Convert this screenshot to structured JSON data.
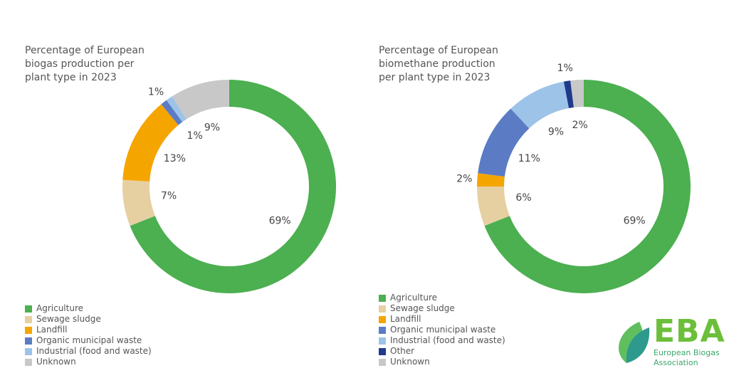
{
  "chart_data": [
    {
      "type": "pie",
      "title": "Percentage of European biogas production per plant type in 2023",
      "categories": [
        "Agriculture",
        "Sewage sludge",
        "Landfill",
        "Organic municipal waste",
        "Industrial (food and waste)",
        "Unknown"
      ],
      "values": [
        69,
        7,
        13,
        1,
        1,
        9
      ],
      "value_labels": [
        "69%",
        "7%",
        "13%",
        "1%",
        "1%",
        "9%"
      ],
      "colors": [
        "#4caf50",
        "#e6d0a2",
        "#f5a500",
        "#5b7cc4",
        "#9dc3e8",
        "#c8c8c8"
      ]
    },
    {
      "type": "pie",
      "title": "Percentage of European biomethane production per plant type in 2023",
      "categories": [
        "Agriculture",
        "Sewage sludge",
        "Landfill",
        "Organic municipal waste",
        "Industrial (food and waste)",
        "Other",
        "Unknown"
      ],
      "values": [
        69,
        6,
        2,
        11,
        9,
        1,
        2
      ],
      "value_labels": [
        "69%",
        "6%",
        "2%",
        "11%",
        "9%",
        "1%",
        "2%"
      ],
      "colors": [
        "#4caf50",
        "#e6d0a2",
        "#f5a500",
        "#5b7cc4",
        "#9dc3e8",
        "#1f3a8a",
        "#c8c8c8"
      ]
    }
  ],
  "logo": {
    "title": "EBA",
    "subtitle": "European Biogas Association"
  }
}
